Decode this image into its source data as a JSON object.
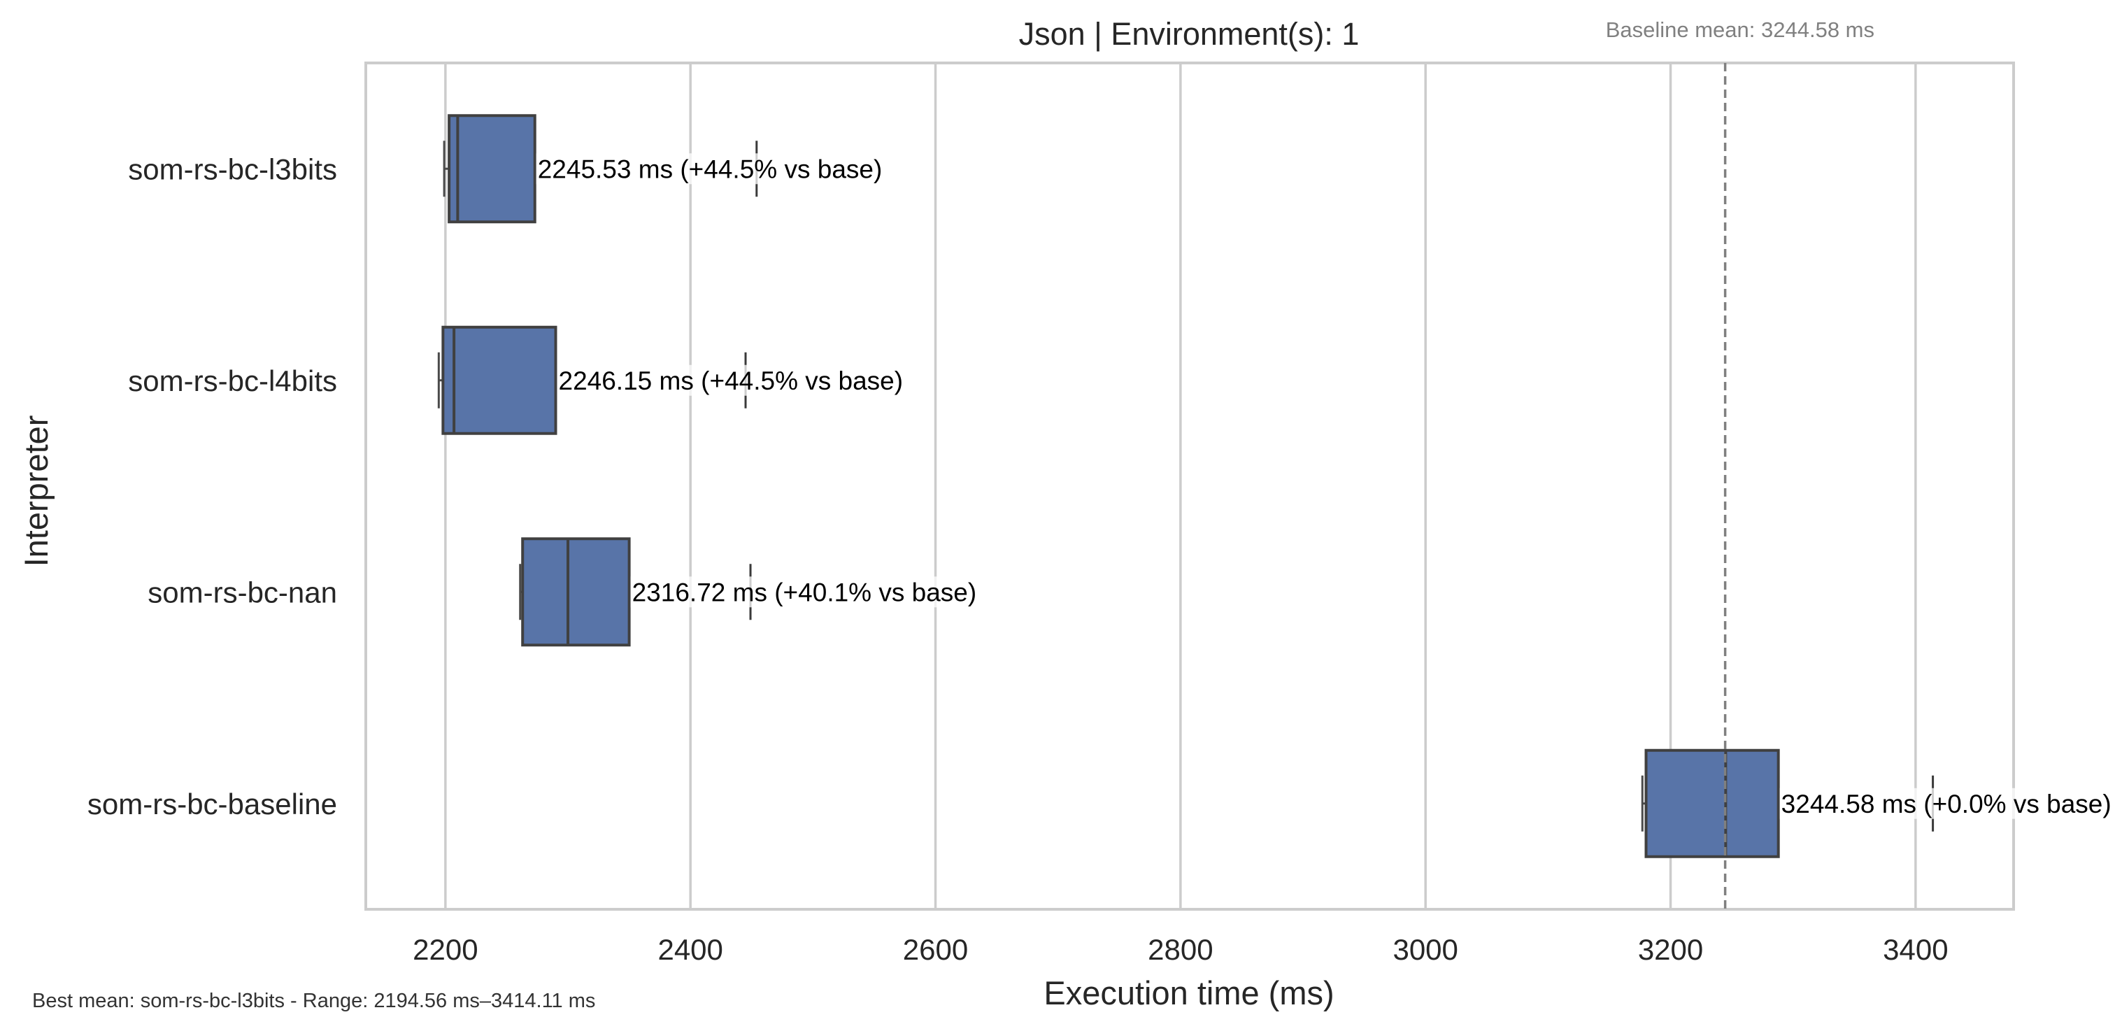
{
  "chart_data": {
    "type": "box",
    "orientation": "horizontal",
    "title": "Json | Environment(s): 1",
    "xlabel": "Execution time (ms)",
    "ylabel": "Interpreter",
    "xlim": [
      2135,
      3480
    ],
    "xticks": [
      2200,
      2400,
      2600,
      2800,
      3000,
      3200,
      3400
    ],
    "grid": true,
    "baseline_note": "Baseline mean: 3244.58 ms",
    "baseline_mean": 3244.58,
    "footer_note": "Best mean: som-rs-bc-l3bits - Range: 2194.56 ms–3414.11 ms",
    "box_color": "#5874a8",
    "categories": [
      "som-rs-bc-l3bits",
      "som-rs-bc-l4bits",
      "som-rs-bc-nan",
      "som-rs-bc-baseline"
    ],
    "series": [
      {
        "category": "som-rs-bc-l3bits",
        "whisker_low": 2199,
        "q1": 2203,
        "median": 2210,
        "q3": 2273,
        "whisker_high": 2273,
        "outliers": [
          2454
        ],
        "mean": 2245.53,
        "label": "2245.53 ms  (+44.5% vs base)"
      },
      {
        "category": "som-rs-bc-l4bits",
        "whisker_low": 2194.56,
        "q1": 2198,
        "median": 2207,
        "q3": 2290,
        "whisker_high": 2290,
        "outliers": [
          2445
        ],
        "mean": 2246.15,
        "label": "2246.15 ms  (+44.5% vs base)"
      },
      {
        "category": "som-rs-bc-nan",
        "whisker_low": 2261,
        "q1": 2263,
        "median": 2300,
        "q3": 2350,
        "whisker_high": 2350,
        "outliers": [
          2449
        ],
        "mean": 2316.72,
        "label": "2316.72 ms  (+40.1% vs base)"
      },
      {
        "category": "som-rs-bc-baseline",
        "whisker_low": 3177,
        "q1": 3180,
        "median": 3245,
        "q3": 3288,
        "whisker_high": 3288,
        "outliers": [
          3414.11
        ],
        "mean": 3244.58,
        "label": "3244.58 ms  (+0.0% vs base)"
      }
    ]
  }
}
